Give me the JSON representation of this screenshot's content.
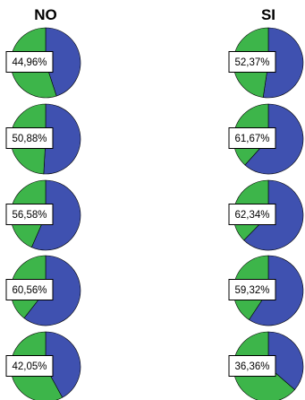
{
  "chart_data": {
    "type": "pie",
    "colors": {
      "value_slice": "#3f51b0",
      "remainder_slice": "#3db54a"
    },
    "columns": [
      {
        "title": "NO",
        "pies": [
          {
            "label": "44,96%",
            "value": 44.96
          },
          {
            "label": "50,88%",
            "value": 50.88
          },
          {
            "label": "56,58%",
            "value": 56.58
          },
          {
            "label": "60,56%",
            "value": 60.56
          },
          {
            "label": "42,05%",
            "value": 42.05
          }
        ]
      },
      {
        "title": "SI",
        "pies": [
          {
            "label": "52,37%",
            "value": 52.37
          },
          {
            "label": "61,67%",
            "value": 61.67
          },
          {
            "label": "62,34%",
            "value": 62.34
          },
          {
            "label": "59,32%",
            "value": 59.32
          },
          {
            "label": "36,36%",
            "value": 36.36
          }
        ]
      }
    ]
  }
}
